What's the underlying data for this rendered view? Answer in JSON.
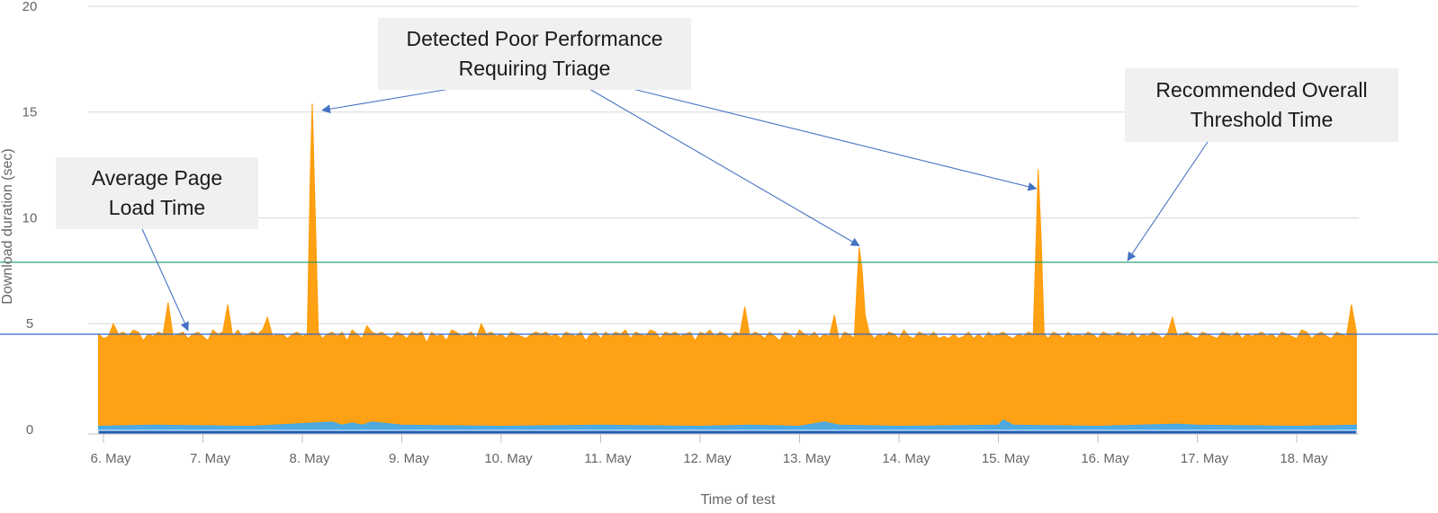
{
  "chart_data": {
    "type": "area",
    "xlabel": "Time of test",
    "ylabel": "Download duration (sec)",
    "ylim": [
      0,
      20
    ],
    "yticks": [
      "0",
      "5",
      "10",
      "15",
      "20"
    ],
    "categories": [
      "6. May",
      "7. May",
      "8. May",
      "9. May",
      "10. May",
      "11. May",
      "12. May",
      "13. May",
      "14. May",
      "15. May",
      "16. May",
      "17. May",
      "18. May"
    ],
    "grid": true,
    "series": [
      {
        "color": "#ff9900",
        "points": [
          [
            5.95,
            4.5
          ],
          [
            6.0,
            4.3
          ],
          [
            6.05,
            4.4
          ],
          [
            6.1,
            5.0
          ],
          [
            6.15,
            4.5
          ],
          [
            6.2,
            4.6
          ],
          [
            6.25,
            4.4
          ],
          [
            6.3,
            4.7
          ],
          [
            6.35,
            4.6
          ],
          [
            6.4,
            4.2
          ],
          [
            6.45,
            4.5
          ],
          [
            6.5,
            4.4
          ],
          [
            6.55,
            4.6
          ],
          [
            6.6,
            4.5
          ],
          [
            6.65,
            6.0
          ],
          [
            6.7,
            4.4
          ],
          [
            6.75,
            4.5
          ],
          [
            6.8,
            4.6
          ],
          [
            6.85,
            4.3
          ],
          [
            6.9,
            4.5
          ],
          [
            6.95,
            4.6
          ],
          [
            7.0,
            4.4
          ],
          [
            7.05,
            4.2
          ],
          [
            7.1,
            4.7
          ],
          [
            7.15,
            4.5
          ],
          [
            7.2,
            4.6
          ],
          [
            7.25,
            5.9
          ],
          [
            7.3,
            4.4
          ],
          [
            7.35,
            4.7
          ],
          [
            7.4,
            4.4
          ],
          [
            7.45,
            4.5
          ],
          [
            7.5,
            4.6
          ],
          [
            7.55,
            4.5
          ],
          [
            7.6,
            4.7
          ],
          [
            7.65,
            5.3
          ],
          [
            7.7,
            4.4
          ],
          [
            7.75,
            4.5
          ],
          [
            7.8,
            4.5
          ],
          [
            7.85,
            4.3
          ],
          [
            7.9,
            4.5
          ],
          [
            7.95,
            4.6
          ],
          [
            8.0,
            4.4
          ],
          [
            8.05,
            4.5
          ],
          [
            8.08,
            12.0
          ],
          [
            8.1,
            15.4
          ],
          [
            8.13,
            10.0
          ],
          [
            8.16,
            4.6
          ],
          [
            8.2,
            4.3
          ],
          [
            8.25,
            4.5
          ],
          [
            8.3,
            4.6
          ],
          [
            8.35,
            4.4
          ],
          [
            8.4,
            4.6
          ],
          [
            8.45,
            4.2
          ],
          [
            8.5,
            4.7
          ],
          [
            8.55,
            4.5
          ],
          [
            8.6,
            4.3
          ],
          [
            8.65,
            4.9
          ],
          [
            8.7,
            4.6
          ],
          [
            8.75,
            4.5
          ],
          [
            8.8,
            4.6
          ],
          [
            8.85,
            4.4
          ],
          [
            8.9,
            4.3
          ],
          [
            8.95,
            4.6
          ],
          [
            9.0,
            4.5
          ],
          [
            9.05,
            4.3
          ],
          [
            9.1,
            4.6
          ],
          [
            9.15,
            4.5
          ],
          [
            9.2,
            4.6
          ],
          [
            9.25,
            4.1
          ],
          [
            9.3,
            4.6
          ],
          [
            9.35,
            4.4
          ],
          [
            9.4,
            4.5
          ],
          [
            9.45,
            4.2
          ],
          [
            9.5,
            4.7
          ],
          [
            9.55,
            4.6
          ],
          [
            9.6,
            4.4
          ],
          [
            9.65,
            4.5
          ],
          [
            9.7,
            4.6
          ],
          [
            9.75,
            4.3
          ],
          [
            9.8,
            5.0
          ],
          [
            9.85,
            4.5
          ],
          [
            9.9,
            4.6
          ],
          [
            9.95,
            4.4
          ],
          [
            10.0,
            4.5
          ],
          [
            10.05,
            4.3
          ],
          [
            10.1,
            4.6
          ],
          [
            10.15,
            4.5
          ],
          [
            10.2,
            4.4
          ],
          [
            10.25,
            4.3
          ],
          [
            10.3,
            4.5
          ],
          [
            10.35,
            4.6
          ],
          [
            10.4,
            4.5
          ],
          [
            10.45,
            4.6
          ],
          [
            10.5,
            4.4
          ],
          [
            10.55,
            4.5
          ],
          [
            10.6,
            4.3
          ],
          [
            10.65,
            4.6
          ],
          [
            10.7,
            4.5
          ],
          [
            10.75,
            4.4
          ],
          [
            10.8,
            4.6
          ],
          [
            10.85,
            4.2
          ],
          [
            10.9,
            4.5
          ],
          [
            10.95,
            4.6
          ],
          [
            11.0,
            4.3
          ],
          [
            11.05,
            4.6
          ],
          [
            11.1,
            4.4
          ],
          [
            11.15,
            4.6
          ],
          [
            11.2,
            4.5
          ],
          [
            11.25,
            4.7
          ],
          [
            11.3,
            4.3
          ],
          [
            11.35,
            4.6
          ],
          [
            11.4,
            4.5
          ],
          [
            11.45,
            4.4
          ],
          [
            11.5,
            4.7
          ],
          [
            11.55,
            4.6
          ],
          [
            11.6,
            4.3
          ],
          [
            11.65,
            4.6
          ],
          [
            11.7,
            4.5
          ],
          [
            11.75,
            4.6
          ],
          [
            11.8,
            4.4
          ],
          [
            11.85,
            4.5
          ],
          [
            11.9,
            4.6
          ],
          [
            11.95,
            4.2
          ],
          [
            12.0,
            4.6
          ],
          [
            12.05,
            4.5
          ],
          [
            12.1,
            4.7
          ],
          [
            12.15,
            4.4
          ],
          [
            12.2,
            4.6
          ],
          [
            12.25,
            4.5
          ],
          [
            12.3,
            4.3
          ],
          [
            12.35,
            4.6
          ],
          [
            12.4,
            4.5
          ],
          [
            12.45,
            5.8
          ],
          [
            12.5,
            4.4
          ],
          [
            12.55,
            4.6
          ],
          [
            12.6,
            4.5
          ],
          [
            12.65,
            4.3
          ],
          [
            12.7,
            4.6
          ],
          [
            12.75,
            4.4
          ],
          [
            12.8,
            4.2
          ],
          [
            12.85,
            4.6
          ],
          [
            12.9,
            4.5
          ],
          [
            12.95,
            4.3
          ],
          [
            13.0,
            4.7
          ],
          [
            13.05,
            4.5
          ],
          [
            13.1,
            4.4
          ],
          [
            13.15,
            4.6
          ],
          [
            13.2,
            4.3
          ],
          [
            13.25,
            4.5
          ],
          [
            13.3,
            4.4
          ],
          [
            13.35,
            5.4
          ],
          [
            13.4,
            4.2
          ],
          [
            13.45,
            4.6
          ],
          [
            13.5,
            4.5
          ],
          [
            13.55,
            4.3
          ],
          [
            13.58,
            7.0
          ],
          [
            13.6,
            8.6
          ],
          [
            13.63,
            7.5
          ],
          [
            13.66,
            5.4
          ],
          [
            13.7,
            4.6
          ],
          [
            13.75,
            4.3
          ],
          [
            13.8,
            4.5
          ],
          [
            13.85,
            4.4
          ],
          [
            13.9,
            4.6
          ],
          [
            13.95,
            4.5
          ],
          [
            14.0,
            4.3
          ],
          [
            14.05,
            4.7
          ],
          [
            14.1,
            4.4
          ],
          [
            14.15,
            4.3
          ],
          [
            14.2,
            4.6
          ],
          [
            14.25,
            4.5
          ],
          [
            14.3,
            4.4
          ],
          [
            14.35,
            4.6
          ],
          [
            14.4,
            4.3
          ],
          [
            14.45,
            4.4
          ],
          [
            14.5,
            4.3
          ],
          [
            14.55,
            4.5
          ],
          [
            14.6,
            4.3
          ],
          [
            14.65,
            4.4
          ],
          [
            14.7,
            4.6
          ],
          [
            14.75,
            4.3
          ],
          [
            14.8,
            4.5
          ],
          [
            14.85,
            4.3
          ],
          [
            14.9,
            4.6
          ],
          [
            14.95,
            4.4
          ],
          [
            15.0,
            4.5
          ],
          [
            15.05,
            4.6
          ],
          [
            15.1,
            4.4
          ],
          [
            15.15,
            4.3
          ],
          [
            15.2,
            4.5
          ],
          [
            15.25,
            4.4
          ],
          [
            15.3,
            4.6
          ],
          [
            15.35,
            4.5
          ],
          [
            15.38,
            9.0
          ],
          [
            15.4,
            12.3
          ],
          [
            15.43,
            9.0
          ],
          [
            15.46,
            4.5
          ],
          [
            15.5,
            4.3
          ],
          [
            15.55,
            4.6
          ],
          [
            15.6,
            4.5
          ],
          [
            15.65,
            4.3
          ],
          [
            15.7,
            4.6
          ],
          [
            15.75,
            4.4
          ],
          [
            15.8,
            4.5
          ],
          [
            15.85,
            4.4
          ],
          [
            15.9,
            4.6
          ],
          [
            15.95,
            4.5
          ],
          [
            16.0,
            4.3
          ],
          [
            16.05,
            4.6
          ],
          [
            16.1,
            4.5
          ],
          [
            16.15,
            4.4
          ],
          [
            16.2,
            4.6
          ],
          [
            16.25,
            4.5
          ],
          [
            16.3,
            4.4
          ],
          [
            16.35,
            4.6
          ],
          [
            16.4,
            4.3
          ],
          [
            16.45,
            4.5
          ],
          [
            16.5,
            4.4
          ],
          [
            16.55,
            4.6
          ],
          [
            16.6,
            4.5
          ],
          [
            16.65,
            4.3
          ],
          [
            16.7,
            4.5
          ],
          [
            16.75,
            5.3
          ],
          [
            16.8,
            4.4
          ],
          [
            16.85,
            4.5
          ],
          [
            16.9,
            4.6
          ],
          [
            16.95,
            4.4
          ],
          [
            17.0,
            4.3
          ],
          [
            17.05,
            4.6
          ],
          [
            17.1,
            4.5
          ],
          [
            17.15,
            4.4
          ],
          [
            17.2,
            4.3
          ],
          [
            17.25,
            4.6
          ],
          [
            17.3,
            4.5
          ],
          [
            17.35,
            4.4
          ],
          [
            17.4,
            4.6
          ],
          [
            17.45,
            4.3
          ],
          [
            17.5,
            4.5
          ],
          [
            17.55,
            4.4
          ],
          [
            17.6,
            4.5
          ],
          [
            17.65,
            4.6
          ],
          [
            17.7,
            4.4
          ],
          [
            17.75,
            4.5
          ],
          [
            17.8,
            4.3
          ],
          [
            17.85,
            4.6
          ],
          [
            17.9,
            4.5
          ],
          [
            17.95,
            4.4
          ],
          [
            18.0,
            4.3
          ],
          [
            18.05,
            4.7
          ],
          [
            18.1,
            4.6
          ],
          [
            18.15,
            4.3
          ],
          [
            18.2,
            4.5
          ],
          [
            18.25,
            4.6
          ],
          [
            18.3,
            4.4
          ],
          [
            18.35,
            4.3
          ],
          [
            18.4,
            4.6
          ],
          [
            18.45,
            4.5
          ],
          [
            18.5,
            4.4
          ],
          [
            18.55,
            5.9
          ],
          [
            18.6,
            4.6
          ]
        ]
      },
      {
        "color": "#33aaff",
        "points": [
          [
            5.95,
            0.15
          ],
          [
            6.5,
            0.2
          ],
          [
            7.5,
            0.15
          ],
          [
            8.3,
            0.35
          ],
          [
            8.4,
            0.2
          ],
          [
            8.5,
            0.3
          ],
          [
            8.6,
            0.2
          ],
          [
            8.7,
            0.35
          ],
          [
            9.0,
            0.2
          ],
          [
            10.0,
            0.15
          ],
          [
            11.0,
            0.2
          ],
          [
            12.0,
            0.15
          ],
          [
            12.5,
            0.2
          ],
          [
            13.0,
            0.15
          ],
          [
            13.25,
            0.35
          ],
          [
            13.4,
            0.2
          ],
          [
            14.0,
            0.15
          ],
          [
            15.0,
            0.2
          ],
          [
            15.05,
            0.45
          ],
          [
            15.15,
            0.2
          ],
          [
            16.0,
            0.15
          ],
          [
            16.8,
            0.25
          ],
          [
            17.0,
            0.2
          ],
          [
            18.0,
            0.15
          ],
          [
            18.6,
            0.2
          ]
        ]
      }
    ],
    "reference_lines": [
      {
        "label": "Average Page Load Time",
        "value": 4.5,
        "color": "#3366cc"
      },
      {
        "label": "Recommended Overall Threshold Time",
        "value": 7.9,
        "color": "#1a9966"
      }
    ],
    "annotations": [
      {
        "id": "avg",
        "lines": [
          "Average Page",
          "Load Time"
        ],
        "targets": [
          [
            6.85,
            4.6
          ]
        ]
      },
      {
        "id": "poor",
        "lines": [
          "Detected Poor Performance",
          "Requiring Triage"
        ],
        "targets": [
          [
            8.2,
            15.0
          ],
          [
            13.6,
            8.6
          ],
          [
            15.38,
            11.3
          ]
        ]
      },
      {
        "id": "threshold",
        "lines": [
          "Recommended Overall",
          "Threshold Time"
        ],
        "targets": [
          [
            16.3,
            7.9
          ]
        ]
      }
    ]
  }
}
